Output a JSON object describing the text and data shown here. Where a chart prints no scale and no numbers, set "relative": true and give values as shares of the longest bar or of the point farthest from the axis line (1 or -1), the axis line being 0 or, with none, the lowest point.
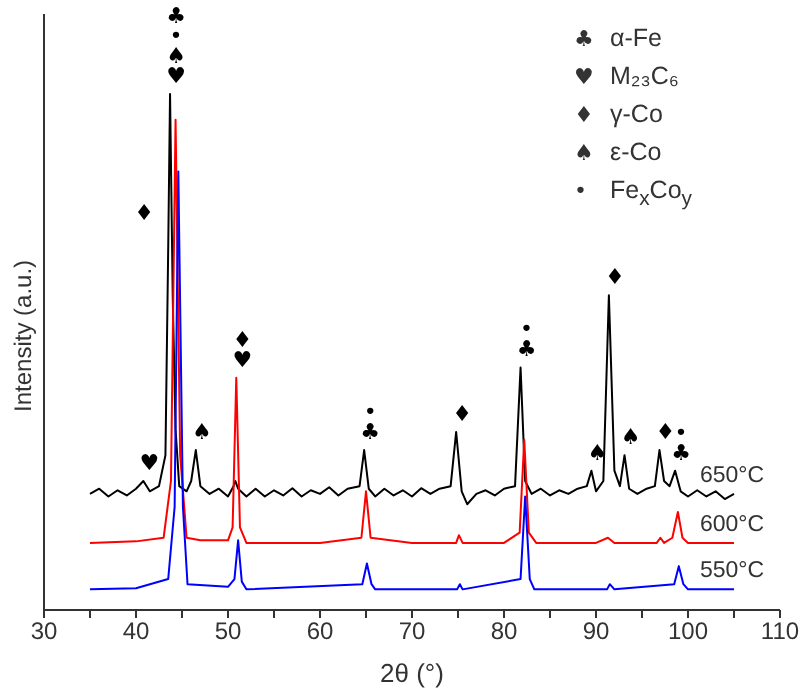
{
  "chart_data": {
    "type": "line",
    "relative": true,
    "xlabel": "2θ (°)",
    "ylabel": "Intensity (a.u.)",
    "xlim": [
      30,
      110
    ],
    "xticks": [
      30,
      {
        "value": 35,
        "label": null
      },
      40,
      {
        "value": 45,
        "label": null
      },
      50,
      {
        "value": 55,
        "label": null
      },
      60,
      {
        "value": 65,
        "label": null
      },
      70,
      {
        "value": 75,
        "label": null
      },
      80,
      {
        "value": 85,
        "label": null
      },
      90,
      {
        "value": 95,
        "label": null
      },
      100,
      {
        "value": 105,
        "label": null
      },
      110
    ],
    "marker": "none",
    "line_style": "solid",
    "series": [
      {
        "name": "650°C",
        "color": "#000000",
        "x": [
          35,
          36,
          37,
          38,
          39,
          40,
          40.8,
          41.5,
          42.5,
          43.2,
          43.5,
          43.7,
          44.0,
          44.3,
          44.7,
          45.5,
          46.0,
          46.5,
          47.0,
          48,
          49,
          50,
          50.6,
          50.8,
          51.1,
          52,
          53,
          54,
          55,
          56,
          57,
          58,
          59,
          60,
          61,
          62,
          63,
          64.3,
          64.8,
          65.3,
          66,
          67,
          68,
          69,
          70,
          71,
          72,
          73,
          74.2,
          74.8,
          75.4,
          76,
          77,
          78,
          79,
          80,
          81.2,
          81.8,
          82.3,
          83,
          84,
          85,
          86,
          87,
          88,
          89,
          89.5,
          90,
          90.8,
          91.4,
          92,
          92.6,
          93.1,
          93.6,
          94.5,
          95.5,
          96.4,
          96.9,
          97.4,
          98,
          98.6,
          99.2,
          100,
          101,
          102,
          103,
          104,
          105
        ],
        "values": [
          0.225,
          0.235,
          0.22,
          0.232,
          0.222,
          0.235,
          0.25,
          0.23,
          0.24,
          0.3,
          0.7,
          1.0,
          0.6,
          0.35,
          0.24,
          0.23,
          0.25,
          0.31,
          0.24,
          0.225,
          0.235,
          0.22,
          0.24,
          0.25,
          0.235,
          0.22,
          0.235,
          0.22,
          0.232,
          0.222,
          0.236,
          0.22,
          0.232,
          0.225,
          0.238,
          0.222,
          0.235,
          0.24,
          0.31,
          0.235,
          0.22,
          0.235,
          0.222,
          0.232,
          0.22,
          0.236,
          0.225,
          0.235,
          0.24,
          0.345,
          0.23,
          0.205,
          0.225,
          0.232,
          0.222,
          0.235,
          0.24,
          0.47,
          0.25,
          0.225,
          0.235,
          0.222,
          0.232,
          0.225,
          0.235,
          0.24,
          0.27,
          0.23,
          0.25,
          0.61,
          0.27,
          0.24,
          0.3,
          0.235,
          0.225,
          0.235,
          0.24,
          0.31,
          0.25,
          0.24,
          0.27,
          0.23,
          0.22,
          0.232,
          0.22,
          0.23,
          0.215,
          0.225
        ]
      },
      {
        "name": "600°C",
        "color": "#ff0000",
        "x": [
          35,
          40,
          43,
          43.8,
          44.3,
          44.8,
          45.5,
          47,
          50,
          50.5,
          50.9,
          51.3,
          52,
          60,
          64.5,
          65.0,
          65.5,
          70,
          74.8,
          75.1,
          75.5,
          80,
          81.7,
          82.2,
          82.7,
          83.5,
          90,
          91.3,
          92,
          96.6,
          97,
          97.4,
          98.3,
          98.9,
          99.4,
          100,
          105
        ],
        "values": [
          0.13,
          0.133,
          0.14,
          0.25,
          0.95,
          0.3,
          0.14,
          0.135,
          0.135,
          0.16,
          0.45,
          0.16,
          0.13,
          0.13,
          0.14,
          0.23,
          0.14,
          0.13,
          0.13,
          0.145,
          0.13,
          0.13,
          0.15,
          0.33,
          0.15,
          0.13,
          0.13,
          0.14,
          0.13,
          0.13,
          0.14,
          0.13,
          0.14,
          0.19,
          0.14,
          0.13,
          0.13
        ]
      },
      {
        "name": "550°C",
        "color": "#0000ff",
        "x": [
          35,
          40,
          43.5,
          44.2,
          44.6,
          45.1,
          45.6,
          50,
          50.7,
          51.1,
          51.5,
          52,
          64.6,
          65.1,
          65.6,
          66,
          74.9,
          75.2,
          75.5,
          81.8,
          82.3,
          82.8,
          83.3,
          91.2,
          91.5,
          92,
          98.5,
          99.0,
          99.5,
          100,
          105
        ],
        "values": [
          0.04,
          0.042,
          0.06,
          0.2,
          0.85,
          0.2,
          0.05,
          0.045,
          0.06,
          0.135,
          0.055,
          0.04,
          0.05,
          0.09,
          0.05,
          0.04,
          0.04,
          0.05,
          0.04,
          0.06,
          0.22,
          0.06,
          0.04,
          0.04,
          0.05,
          0.04,
          0.05,
          0.085,
          0.05,
          0.04,
          0.04
        ]
      }
    ],
    "annotations": [
      "♣ α-Fe",
      "♥ M₂₃C₆",
      "♦ γ-Co",
      "♠ ε-Co",
      "• Fe$_{x}$Co$_{y}$",
      {
        "text": "♥",
        "x": 43.7,
        "y": 1.0
      },
      {
        "text": "♠",
        "x": 43.7,
        "y": 1.0
      },
      {
        "text": "•",
        "x": 43.7,
        "y": 1.0
      },
      {
        "text": "♣",
        "x": 43.7,
        "y": 1.0
      },
      {
        "text": "♦",
        "x": 43.5,
        "y": 0.7
      },
      {
        "text": "♥",
        "x": 40.8,
        "y": 0.25
      },
      {
        "text": "♠",
        "x": 46.5,
        "y": 0.31
      },
      {
        "text": "♥",
        "x": 50.9,
        "y": 0.45
      },
      {
        "text": "♦",
        "x": 50.9,
        "y": 0.45
      },
      {
        "text": "♣",
        "x": 64.8,
        "y": 0.31
      },
      {
        "text": "•",
        "x": 64.8,
        "y": 0.31
      },
      {
        "text": "♦",
        "x": 74.8,
        "y": 0.345
      },
      {
        "text": "♣",
        "x": 81.8,
        "y": 0.47
      },
      {
        "text": "•",
        "x": 81.8,
        "y": 0.47
      },
      {
        "text": "♦",
        "x": 91.4,
        "y": 0.61
      },
      {
        "text": "♠",
        "x": 89.5,
        "y": 0.27
      },
      {
        "text": "♠",
        "x": 93.1,
        "y": 0.3
      },
      {
        "text": "♦",
        "x": 96.9,
        "y": 0.31
      },
      {
        "text": "♣",
        "x": 98.6,
        "y": 0.27
      },
      {
        "text": "•",
        "x": 98.6,
        "y": 0.27
      }
    ]
  }
}
